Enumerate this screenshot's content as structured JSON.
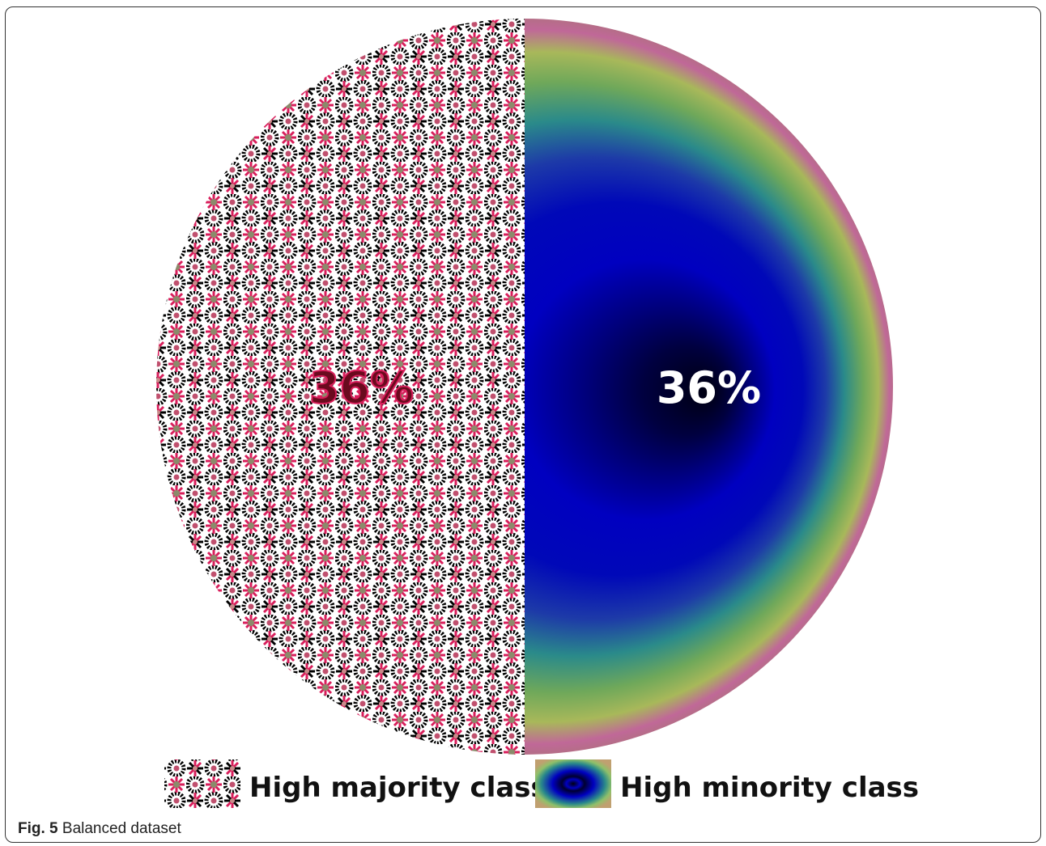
{
  "figure": {
    "fig_label": "Fig. 5",
    "caption": "Balanced dataset"
  },
  "chart_data": {
    "type": "pie",
    "title": "",
    "slices": [
      {
        "name": "High majority class",
        "value": 36,
        "label": "36%",
        "pattern": "flower-pattern",
        "colors": [
          "#d81e5b",
          "#000000",
          "#8b8b6b"
        ]
      },
      {
        "name": "High minority class",
        "value": 36,
        "label": "36%",
        "pattern": "concentric-rings",
        "colors": [
          "#0a0a8a",
          "#0000c8",
          "#2a8a8a",
          "#8fc06a",
          "#c86496"
        ]
      }
    ],
    "legend": {
      "placement": "bottom"
    }
  }
}
